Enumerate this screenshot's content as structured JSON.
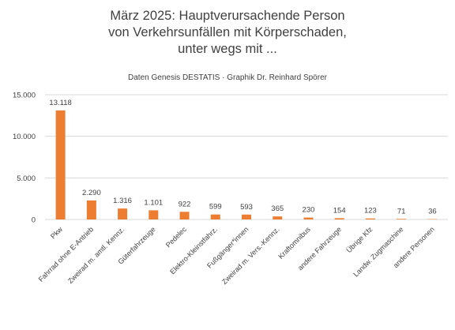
{
  "title": {
    "line1": "März 2025: Hauptverursachende Person",
    "line2": "von Verkehrsunfällen mit Körperschaden,",
    "line3": "unter wegs mit ..."
  },
  "subtitle": "Daten Genesis DESTATIS · Graphik Dr. Reinhard Spörer",
  "colors": {
    "bar": "#ED7D31",
    "grid": "#D9D9D9",
    "text": "#404040"
  },
  "chart_data": {
    "type": "bar",
    "title": "März 2025: Hauptverursachende Person von Verkehrsunfällen mit Körperschaden, unter wegs mit ...",
    "subtitle": "Daten Genesis DESTATIS · Graphik Dr. Reinhard Spörer",
    "xlabel": "",
    "ylabel": "",
    "ylim": [
      0,
      15000
    ],
    "yticks": [
      0,
      5000,
      10000,
      15000
    ],
    "ytick_labels": [
      "0",
      "5.000",
      "10.000",
      "15.000"
    ],
    "grid": true,
    "legend": "none",
    "categories": [
      "Pkw",
      "Fahrrad ohne E-Antrieb",
      "Zweirad m. amtl. Kennz.",
      "Güterfahrzeuge",
      "Pedelec",
      "Elektro-Kleinstfahrz.",
      "Fußgänger*innen",
      "Zweirad m. Vers.-Kennz.",
      "Kraftomnibus",
      "andere Fahrzeuge",
      "Übrige Kfz",
      "Landw. Zugmaschine",
      "andere Personen"
    ],
    "values": [
      13118,
      2290,
      1316,
      1101,
      922,
      599,
      593,
      365,
      230,
      154,
      123,
      71,
      36
    ],
    "value_labels": [
      "13.118",
      "2.290",
      "1.316",
      "1.101",
      "922",
      "599",
      "593",
      "365",
      "230",
      "154",
      "123",
      "71",
      "36"
    ]
  }
}
